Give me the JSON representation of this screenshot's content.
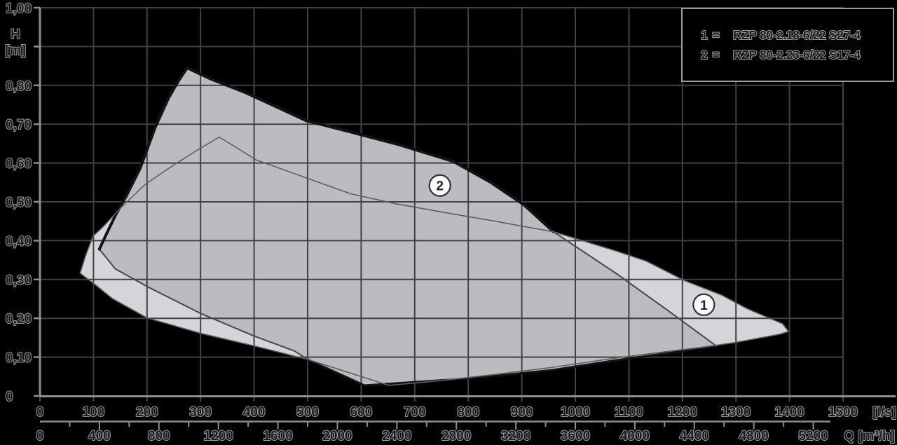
{
  "page": {
    "background": "#000000"
  },
  "legend": {
    "eq": "="
  },
  "axes": {
    "y": {
      "unit_lines": [
        "H",
        "[m]"
      ],
      "ticks": [
        {
          "v": 1.0,
          "label": "1,00"
        },
        {
          "v": 0.9,
          "label": ""
        },
        {
          "v": 0.8,
          "label": "0,80"
        },
        {
          "v": 0.7,
          "label": "0,70"
        },
        {
          "v": 0.6,
          "label": "0,60"
        },
        {
          "v": 0.5,
          "label": "0,50"
        },
        {
          "v": 0.4,
          "label": "0,40"
        },
        {
          "v": 0.3,
          "label": "0,30"
        },
        {
          "v": 0.2,
          "label": "0,20"
        },
        {
          "v": 0.1,
          "label": "0,10"
        },
        {
          "v": 0.0,
          "label": "0"
        }
      ]
    },
    "x_ls": {
      "unit": "[l/s]",
      "min": 0,
      "max": 1500,
      "step": 100
    },
    "x_m3h": {
      "unit": "Q [m³/h]",
      "min": 0,
      "max": 5200,
      "label_step": 400,
      "tick_step": 200,
      "per_ls": 3.6
    }
  },
  "chart_data": {
    "type": "area",
    "title": "",
    "description": "Pump duty range envelopes, head H [m] versus flow Q ([l/s] top scale, [m³/h] bottom scale)",
    "x_primary": {
      "label": "[l/s]",
      "range": [
        0,
        1500
      ],
      "gridline_step": 100
    },
    "x_secondary": {
      "label": "Q [m³/h]",
      "range": [
        0,
        5200
      ],
      "label_step": 400,
      "tick_step": 200
    },
    "y": {
      "label": "H [m]",
      "range": [
        0,
        1.0
      ],
      "gridline_step": 0.1
    },
    "grid": true,
    "legend_position": "top-right",
    "series": [
      {
        "id": "1",
        "name": "RZP 80-2.18-6/22 S27-4",
        "marker": {
          "q": 1240,
          "h": 0.235
        },
        "envelope_q_h": [
          [
            75,
            0.316
          ],
          [
            85,
            0.36
          ],
          [
            99,
            0.411
          ],
          [
            118,
            0.436
          ],
          [
            152,
            0.486
          ],
          [
            196,
            0.544
          ],
          [
            240,
            0.586
          ],
          [
            288,
            0.628
          ],
          [
            335,
            0.667
          ],
          [
            404,
            0.608
          ],
          [
            497,
            0.562
          ],
          [
            580,
            0.521
          ],
          [
            665,
            0.495
          ],
          [
            750,
            0.474
          ],
          [
            842,
            0.452
          ],
          [
            959,
            0.423
          ],
          [
            1077,
            0.373
          ],
          [
            1133,
            0.347
          ],
          [
            1204,
            0.297
          ],
          [
            1273,
            0.26
          ],
          [
            1322,
            0.224
          ],
          [
            1361,
            0.201
          ],
          [
            1387,
            0.186
          ],
          [
            1398,
            0.166
          ],
          [
            1382,
            0.159
          ],
          [
            1339,
            0.148
          ],
          [
            1296,
            0.137
          ],
          [
            1234,
            0.125
          ],
          [
            1169,
            0.114
          ],
          [
            1077,
            0.098
          ],
          [
            959,
            0.074
          ],
          [
            842,
            0.054
          ],
          [
            737,
            0.038
          ],
          [
            652,
            0.027
          ],
          [
            500,
            0.094
          ],
          [
            397,
            0.13
          ],
          [
            301,
            0.161
          ],
          [
            200,
            0.201
          ],
          [
            135,
            0.251
          ],
          [
            102,
            0.288
          ]
        ]
      },
      {
        "id": "2",
        "name": "RZP 80-2.23-6/22 S17-4",
        "marker": {
          "q": 747,
          "h": 0.542
        },
        "thick_top_end_index": 18,
        "thick_bottom_range": [
          21,
          27
        ],
        "envelope_q_h": [
          [
            111,
            0.378
          ],
          [
            122,
            0.411
          ],
          [
            141,
            0.465
          ],
          [
            161,
            0.514
          ],
          [
            187,
            0.586
          ],
          [
            216,
            0.694
          ],
          [
            240,
            0.767
          ],
          [
            259,
            0.812
          ],
          [
            275,
            0.845
          ],
          [
            318,
            0.817
          ],
          [
            384,
            0.781
          ],
          [
            449,
            0.74
          ],
          [
            497,
            0.709
          ],
          [
            580,
            0.68
          ],
          [
            671,
            0.647
          ],
          [
            772,
            0.604
          ],
          [
            842,
            0.55
          ],
          [
            904,
            0.492
          ],
          [
            959,
            0.423
          ],
          [
            1077,
            0.315
          ],
          [
            1169,
            0.224
          ],
          [
            1264,
            0.128
          ],
          [
            1077,
            0.092
          ],
          [
            959,
            0.067
          ],
          [
            802,
            0.045
          ],
          [
            701,
            0.036
          ],
          [
            606,
            0.027
          ],
          [
            500,
            0.094
          ],
          [
            475,
            0.116
          ],
          [
            397,
            0.156
          ],
          [
            301,
            0.212
          ],
          [
            200,
            0.282
          ],
          [
            141,
            0.327
          ]
        ]
      }
    ]
  },
  "colors": {
    "background": "#000000",
    "grid": "#414145",
    "axis": "#8e8e92",
    "region1_fill": "#d4d5d8",
    "region1_stroke": "#5e5e63",
    "region2_fill": "#babcc0",
    "region2_stroke_thick": "#131315",
    "region2_stroke_thin": "#47474c",
    "marker_fill": "#fafafb",
    "marker_stroke": "#323236",
    "text_fill": "#1b1b1d",
    "text_halo": "#9b9b9f"
  }
}
